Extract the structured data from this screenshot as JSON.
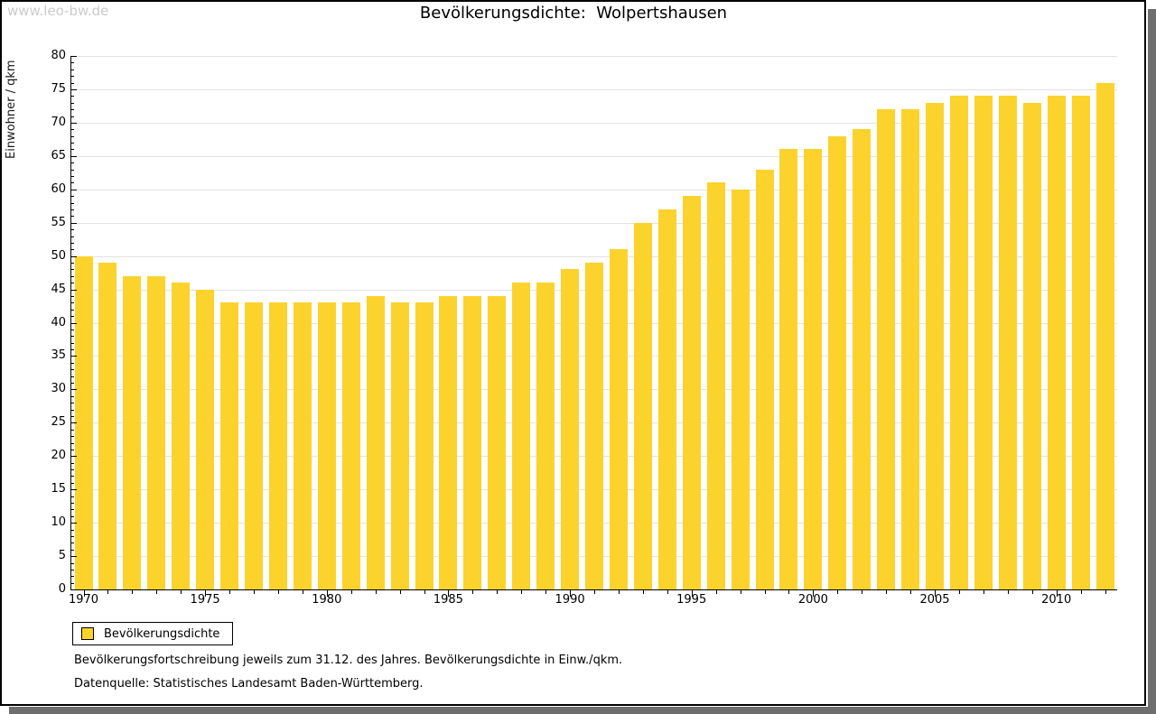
{
  "watermark": "www.leo-bw.de",
  "title": "Bevölkerungsdichte:  Wolpertshausen",
  "legend": {
    "label": "Bevölkerungsdichte"
  },
  "footnotes": [
    "Bevölkerungsfortschreibung jeweils zum 31.12. des Jahres. Bevölkerungsdichte in Einw./qkm.",
    "Datenquelle: Statistisches Landesamt Baden-Württemberg."
  ],
  "colors": {
    "bar": "#fcd32d",
    "grid": "#e2e2e2",
    "axis": "#000000",
    "watermark": "#cbcbcb",
    "shadow": "#6e6e6e"
  },
  "chart_data": {
    "type": "bar",
    "title": "Bevölkerungsdichte: Wolpertshausen",
    "xlabel": "",
    "ylabel": "Einwohner / qkm",
    "ylim": [
      0,
      80
    ],
    "y_major_step": 5,
    "y_minor_step": 1,
    "grid": true,
    "legend_position": "bottom-left",
    "x_label_years": [
      1970,
      1975,
      1980,
      1985,
      1990,
      1995,
      2000,
      2005,
      2010
    ],
    "categories": [
      "1970",
      "1971",
      "1972",
      "1973",
      "1974",
      "1975",
      "1976",
      "1977",
      "1978",
      "1979",
      "1980",
      "1981",
      "1982",
      "1983",
      "1984",
      "1985",
      "1986",
      "1987",
      "1988",
      "1989",
      "1990",
      "1991",
      "1992",
      "1993",
      "1994",
      "1995",
      "1996",
      "1997",
      "1998",
      "1999",
      "2000",
      "2001",
      "2002",
      "2003",
      "2004",
      "2005",
      "2006",
      "2007",
      "2008",
      "2009",
      "2010",
      "2011",
      "2012"
    ],
    "values": [
      50,
      49,
      47,
      47,
      46,
      45,
      43,
      43,
      43,
      43,
      43,
      43,
      44,
      43,
      43,
      44,
      44,
      44,
      46,
      46,
      48,
      49,
      51,
      55,
      57,
      59,
      61,
      60,
      63,
      66,
      66,
      68,
      69,
      72,
      72,
      73,
      74,
      74,
      74,
      73,
      74,
      74,
      76
    ]
  }
}
